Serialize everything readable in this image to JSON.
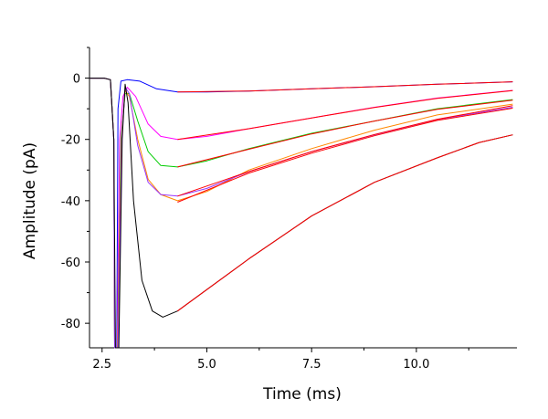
{
  "chart_data": {
    "type": "line",
    "title": "",
    "xlabel": "Time (ms)",
    "ylabel": "Amplitude (pA)",
    "xlim": [
      2.2,
      12.4
    ],
    "ylim": [
      -88,
      10
    ],
    "x_ticks": [
      2.5,
      5.0,
      7.5,
      10.0
    ],
    "x_tick_labels": [
      "2.5",
      "5.0",
      "7.5",
      "10.0"
    ],
    "y_ticks": [
      0,
      -20,
      -40,
      -60,
      -80
    ],
    "y_tick_labels": [
      "0",
      "-20",
      "-40",
      "-60",
      "-80"
    ],
    "grid": false,
    "legend": "none",
    "series": [
      {
        "color": "#0000ff",
        "points": [
          [
            2.2,
            0
          ],
          [
            2.55,
            0
          ],
          [
            2.7,
            -0.5
          ],
          [
            2.78,
            -20
          ],
          [
            2.8,
            -88
          ],
          [
            2.85,
            -88
          ],
          [
            2.88,
            -10
          ],
          [
            2.95,
            -1
          ],
          [
            3.1,
            -0.5
          ],
          [
            3.4,
            -1
          ],
          [
            3.8,
            -3.5
          ],
          [
            4.3,
            -4.5
          ],
          [
            5.0,
            -4.5
          ],
          [
            6.0,
            -4.2
          ],
          [
            7.5,
            -3.5
          ],
          [
            9.0,
            -2.8
          ],
          [
            10.5,
            -2.0
          ],
          [
            12.3,
            -1.2
          ]
        ]
      },
      {
        "color": "#ff00ff",
        "points": [
          [
            2.2,
            0
          ],
          [
            2.55,
            0
          ],
          [
            2.7,
            -0.5
          ],
          [
            2.78,
            -20
          ],
          [
            2.8,
            -88
          ],
          [
            2.86,
            -88
          ],
          [
            2.92,
            -20
          ],
          [
            3.0,
            -6
          ],
          [
            3.1,
            -3
          ],
          [
            3.3,
            -6
          ],
          [
            3.6,
            -15
          ],
          [
            3.9,
            -19
          ],
          [
            4.3,
            -20
          ],
          [
            5.0,
            -19
          ],
          [
            6.0,
            -16.5
          ],
          [
            7.5,
            -13
          ],
          [
            9.0,
            -9.5
          ],
          [
            10.5,
            -6.5
          ],
          [
            12.3,
            -4
          ]
        ]
      },
      {
        "color": "#00cc00",
        "points": [
          [
            2.2,
            0
          ],
          [
            2.55,
            0
          ],
          [
            2.7,
            -0.5
          ],
          [
            2.78,
            -20
          ],
          [
            2.8,
            -88
          ],
          [
            2.87,
            -88
          ],
          [
            2.95,
            -20
          ],
          [
            3.05,
            -5
          ],
          [
            3.15,
            -5
          ],
          [
            3.35,
            -14
          ],
          [
            3.6,
            -24
          ],
          [
            3.9,
            -28.5
          ],
          [
            4.3,
            -29
          ],
          [
            5.0,
            -27
          ],
          [
            6.0,
            -23
          ],
          [
            7.5,
            -18
          ],
          [
            9.0,
            -14
          ],
          [
            10.5,
            -10
          ],
          [
            12.3,
            -7
          ]
        ]
      },
      {
        "color": "#ff8800",
        "points": [
          [
            2.2,
            0
          ],
          [
            2.55,
            0
          ],
          [
            2.7,
            -0.5
          ],
          [
            2.78,
            -20
          ],
          [
            2.8,
            -88
          ],
          [
            2.87,
            -88
          ],
          [
            2.96,
            -20
          ],
          [
            3.05,
            -4
          ],
          [
            3.15,
            -6
          ],
          [
            3.35,
            -20
          ],
          [
            3.6,
            -33
          ],
          [
            3.9,
            -38
          ],
          [
            4.3,
            -40
          ],
          [
            5.0,
            -37
          ],
          [
            6.0,
            -30
          ],
          [
            7.5,
            -23
          ],
          [
            9.0,
            -17
          ],
          [
            10.5,
            -12
          ],
          [
            12.3,
            -8.5
          ]
        ]
      },
      {
        "color": "#9933ff",
        "points": [
          [
            2.2,
            0
          ],
          [
            2.55,
            0
          ],
          [
            2.7,
            -0.5
          ],
          [
            2.78,
            -20
          ],
          [
            2.8,
            -88
          ],
          [
            2.88,
            -88
          ],
          [
            2.97,
            -20
          ],
          [
            3.05,
            -3
          ],
          [
            3.15,
            -5
          ],
          [
            3.35,
            -22
          ],
          [
            3.6,
            -34
          ],
          [
            3.9,
            -38
          ],
          [
            4.3,
            -38.5
          ],
          [
            5.0,
            -36
          ],
          [
            6.0,
            -30.5
          ],
          [
            7.5,
            -24
          ],
          [
            9.0,
            -18.5
          ],
          [
            10.5,
            -13.5
          ],
          [
            12.3,
            -9.5
          ]
        ]
      },
      {
        "color": "#000000",
        "points": [
          [
            2.2,
            0
          ],
          [
            2.55,
            0
          ],
          [
            2.7,
            -0.5
          ],
          [
            2.78,
            -20
          ],
          [
            2.82,
            -88
          ],
          [
            2.9,
            -88
          ],
          [
            2.98,
            -20
          ],
          [
            3.05,
            -2
          ],
          [
            3.12,
            -8
          ],
          [
            3.25,
            -40
          ],
          [
            3.45,
            -66
          ],
          [
            3.7,
            -76
          ],
          [
            3.95,
            -78
          ],
          [
            4.3,
            -76
          ],
          [
            5.0,
            -69
          ],
          [
            6.0,
            -59
          ],
          [
            7.5,
            -45
          ],
          [
            9.0,
            -34
          ],
          [
            10.5,
            -26
          ],
          [
            11.5,
            -21
          ],
          [
            12.3,
            -18.5
          ]
        ]
      },
      {
        "color": "#ff0000",
        "points": [
          [
            4.3,
            -4.5
          ],
          [
            6.0,
            -4.2
          ],
          [
            7.5,
            -3.5
          ],
          [
            9.0,
            -2.8
          ],
          [
            10.5,
            -2.0
          ],
          [
            12.3,
            -1.2
          ]
        ]
      },
      {
        "color": "#ff0000",
        "points": [
          [
            4.3,
            -20
          ],
          [
            6.0,
            -16.5
          ],
          [
            7.5,
            -13
          ],
          [
            9.0,
            -9.6
          ],
          [
            10.5,
            -6.6
          ],
          [
            12.3,
            -4.1
          ]
        ]
      },
      {
        "color": "#ff0000",
        "points": [
          [
            4.3,
            -29
          ],
          [
            6.0,
            -23.2
          ],
          [
            7.5,
            -18.2
          ],
          [
            9.0,
            -14
          ],
          [
            10.5,
            -10.2
          ],
          [
            12.3,
            -7.2
          ]
        ]
      },
      {
        "color": "#ff0000",
        "points": [
          [
            4.3,
            -38.5
          ],
          [
            6.0,
            -30.5
          ],
          [
            7.5,
            -24
          ],
          [
            9.0,
            -18.4
          ],
          [
            10.5,
            -13.4
          ],
          [
            12.3,
            -9
          ]
        ]
      },
      {
        "color": "#ff0000",
        "points": [
          [
            4.3,
            -40.5
          ],
          [
            6.0,
            -31
          ],
          [
            7.5,
            -24.5
          ],
          [
            9.0,
            -18.8
          ],
          [
            10.5,
            -13.8
          ],
          [
            12.3,
            -9.8
          ]
        ]
      },
      {
        "color": "#ff0000",
        "points": [
          [
            4.3,
            -76
          ],
          [
            6.0,
            -59
          ],
          [
            7.5,
            -45
          ],
          [
            9.0,
            -34
          ],
          [
            10.5,
            -26
          ],
          [
            11.5,
            -21
          ],
          [
            12.3,
            -18.5
          ]
        ]
      }
    ]
  }
}
